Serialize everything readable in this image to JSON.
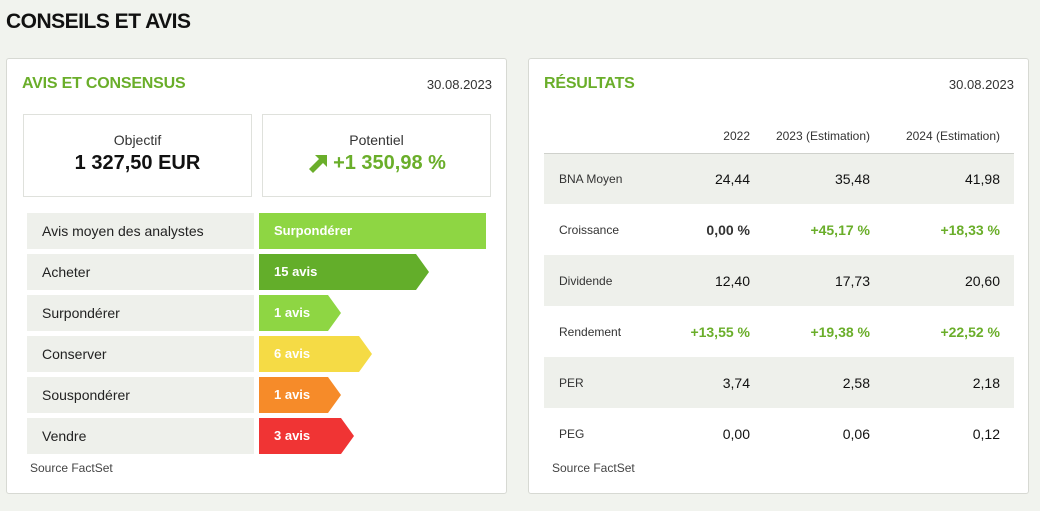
{
  "page_title": "CONSEILS ET AVIS",
  "left": {
    "title": "AVIS ET CONSENSUS",
    "date": "30.08.2023",
    "objectif": {
      "label": "Objectif",
      "value": "1 327,50 EUR"
    },
    "potentiel": {
      "label": "Potentiel",
      "value": "+1 350,98 %",
      "icon": "arrow-up-right-icon"
    },
    "ratings": [
      {
        "label": "Avis moyen des analystes",
        "value": "Surpondérer",
        "color": "#8ed643"
      },
      {
        "label": "Acheter",
        "value": "15 avis",
        "color": "#63ae2a"
      },
      {
        "label": "Surpondérer",
        "value": "1 avis",
        "color": "#8ed643"
      },
      {
        "label": "Conserver",
        "value": "6 avis",
        "color": "#f5db45"
      },
      {
        "label": "Souspondérer",
        "value": "1 avis",
        "color": "#f68b29"
      },
      {
        "label": "Vendre",
        "value": "3 avis",
        "color": "#f03434"
      }
    ],
    "source": "Source FactSet"
  },
  "right": {
    "title": "RÉSULTATS",
    "date": "30.08.2023",
    "headers": [
      "",
      "2022",
      "2023 (Estimation)",
      "2024 (Estimation)"
    ],
    "rows": [
      {
        "label": "BNA Moyen",
        "values": [
          "24,44",
          "35,48",
          "41,98"
        ]
      },
      {
        "label": "Croissance",
        "values": [
          "0,00 %",
          "+45,17 %",
          "+18,33 %"
        ]
      },
      {
        "label": "Dividende",
        "values": [
          "12,40",
          "17,73",
          "20,60"
        ]
      },
      {
        "label": "Rendement",
        "values": [
          "+13,55 %",
          "+19,38 %",
          "+22,52 %"
        ]
      },
      {
        "label": "PER",
        "values": [
          "3,74",
          "2,58",
          "2,18"
        ]
      },
      {
        "label": "PEG",
        "values": [
          "0,00",
          "0,06",
          "0,12"
        ]
      }
    ],
    "source": "Source FactSet"
  }
}
